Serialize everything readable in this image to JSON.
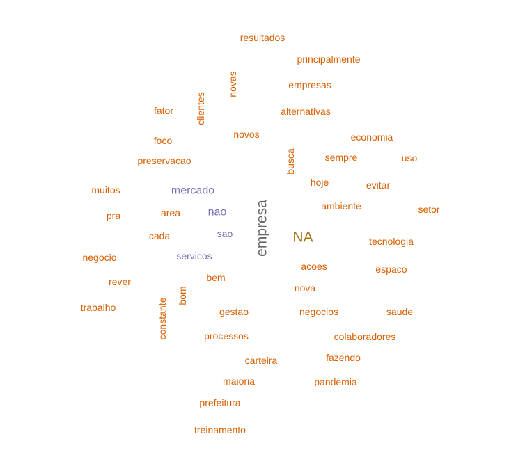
{
  "chart_data": {
    "type": "wordcloud",
    "colors": {
      "orange": "#d95f02",
      "purple": "#7570b3",
      "gray": "#666666",
      "olive": "#a6761d"
    },
    "words": [
      {
        "text": "empresa",
        "color": "#666666",
        "rotated": true
      },
      {
        "text": "NA",
        "color": "#a6761d",
        "rotated": false
      },
      {
        "text": "mercado",
        "color": "#7570b3",
        "rotated": false
      },
      {
        "text": "nao",
        "color": "#7570b3",
        "rotated": false
      },
      {
        "text": "sao",
        "color": "#7570b3",
        "rotated": false
      },
      {
        "text": "servicos",
        "color": "#7570b3",
        "rotated": false
      },
      {
        "text": "resultados",
        "color": "#d95f02",
        "rotated": false
      },
      {
        "text": "principalmente",
        "color": "#d95f02",
        "rotated": false
      },
      {
        "text": "novas",
        "color": "#d95f02",
        "rotated": true
      },
      {
        "text": "empresas",
        "color": "#d95f02",
        "rotated": false
      },
      {
        "text": "clientes",
        "color": "#d95f02",
        "rotated": true
      },
      {
        "text": "fator",
        "color": "#d95f02",
        "rotated": false
      },
      {
        "text": "alternativas",
        "color": "#d95f02",
        "rotated": false
      },
      {
        "text": "novos",
        "color": "#d95f02",
        "rotated": false
      },
      {
        "text": "economia",
        "color": "#d95f02",
        "rotated": false
      },
      {
        "text": "foco",
        "color": "#d95f02",
        "rotated": false
      },
      {
        "text": "busca",
        "color": "#d95f02",
        "rotated": true
      },
      {
        "text": "sempre",
        "color": "#d95f02",
        "rotated": false
      },
      {
        "text": "uso",
        "color": "#d95f02",
        "rotated": false
      },
      {
        "text": "preservacao",
        "color": "#d95f02",
        "rotated": false
      },
      {
        "text": "hoje",
        "color": "#d95f02",
        "rotated": false
      },
      {
        "text": "evitar",
        "color": "#d95f02",
        "rotated": false
      },
      {
        "text": "muitos",
        "color": "#d95f02",
        "rotated": false
      },
      {
        "text": "ambiente",
        "color": "#d95f02",
        "rotated": false
      },
      {
        "text": "setor",
        "color": "#d95f02",
        "rotated": false
      },
      {
        "text": "area",
        "color": "#d95f02",
        "rotated": false
      },
      {
        "text": "pra",
        "color": "#d95f02",
        "rotated": false
      },
      {
        "text": "cada",
        "color": "#d95f02",
        "rotated": false
      },
      {
        "text": "tecnologia",
        "color": "#d95f02",
        "rotated": false
      },
      {
        "text": "negocio",
        "color": "#d95f02",
        "rotated": false
      },
      {
        "text": "acoes",
        "color": "#d95f02",
        "rotated": false
      },
      {
        "text": "espaco",
        "color": "#d95f02",
        "rotated": false
      },
      {
        "text": "bem",
        "color": "#d95f02",
        "rotated": false
      },
      {
        "text": "rever",
        "color": "#d95f02",
        "rotated": false
      },
      {
        "text": "bom",
        "color": "#d95f02",
        "rotated": true
      },
      {
        "text": "nova",
        "color": "#d95f02",
        "rotated": false
      },
      {
        "text": "trabalho",
        "color": "#d95f02",
        "rotated": false
      },
      {
        "text": "constante",
        "color": "#d95f02",
        "rotated": true
      },
      {
        "text": "gestao",
        "color": "#d95f02",
        "rotated": false
      },
      {
        "text": "negocios",
        "color": "#d95f02",
        "rotated": false
      },
      {
        "text": "saude",
        "color": "#d95f02",
        "rotated": false
      },
      {
        "text": "processos",
        "color": "#d95f02",
        "rotated": false
      },
      {
        "text": "colaboradores",
        "color": "#d95f02",
        "rotated": false
      },
      {
        "text": "fazendo",
        "color": "#d95f02",
        "rotated": false
      },
      {
        "text": "carteira",
        "color": "#d95f02",
        "rotated": false
      },
      {
        "text": "maioria",
        "color": "#d95f02",
        "rotated": false
      },
      {
        "text": "pandemia",
        "color": "#d95f02",
        "rotated": false
      },
      {
        "text": "prefeitura",
        "color": "#d95f02",
        "rotated": false
      },
      {
        "text": "treinamento",
        "color": "#d95f02",
        "rotated": false
      }
    ]
  }
}
